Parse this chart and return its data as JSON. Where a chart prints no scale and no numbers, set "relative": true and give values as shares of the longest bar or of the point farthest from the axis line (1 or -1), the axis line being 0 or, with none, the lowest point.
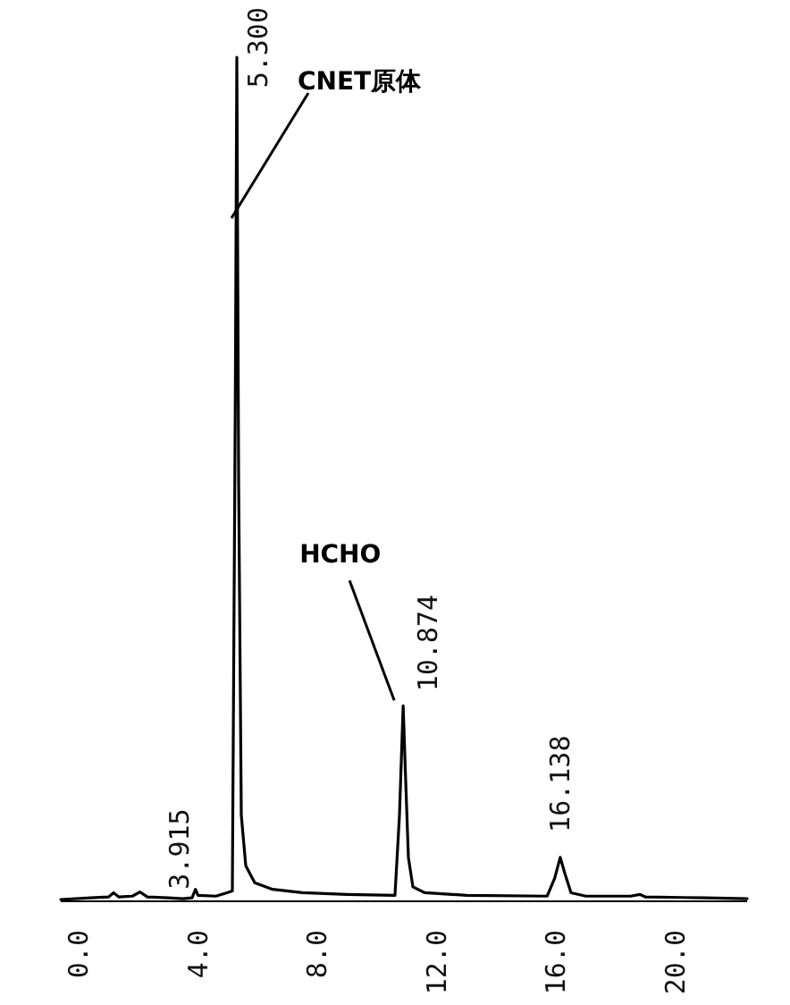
{
  "chart_data": {
    "type": "line",
    "relative": true,
    "tick_labels": "x",
    "xlim": [
      -0.6,
      22.4
    ],
    "xticks": [
      {
        "value": 0,
        "label": "0.0"
      },
      {
        "value": 4,
        "label": "4.0"
      },
      {
        "value": 8,
        "label": "8.0"
      },
      {
        "value": 12,
        "label": "12.0"
      },
      {
        "value": 16,
        "label": "16.0"
      },
      {
        "value": 20,
        "label": "20.0"
      }
    ],
    "series": [
      {
        "color": "#000000",
        "x": [
          -0.6,
          0.4,
          1.0,
          1.17,
          1.35,
          1.8,
          2.05,
          2.3,
          3.0,
          3.5,
          3.8,
          3.915,
          4.0,
          4.6,
          5.15,
          5.25,
          5.3,
          5.36,
          5.45,
          5.6,
          5.9,
          6.5,
          7.5,
          9.0,
          10.6,
          10.75,
          10.874,
          10.95,
          11.05,
          11.2,
          11.6,
          13.0,
          15.7,
          15.95,
          16.138,
          16.3,
          16.5,
          17.0,
          18.5,
          18.8,
          19.0,
          21.0,
          22.4
        ],
        "values": [
          0,
          0.002,
          0.003,
          0.008,
          0.003,
          0.004,
          0.009,
          0.003,
          0.002,
          0.001,
          0.002,
          0.012,
          0.005,
          0.004,
          0.01,
          0.6,
          1.0,
          0.5,
          0.1,
          0.04,
          0.02,
          0.012,
          0.008,
          0.006,
          0.005,
          0.1,
          0.23,
          0.15,
          0.05,
          0.015,
          0.008,
          0.005,
          0.004,
          0.025,
          0.05,
          0.03,
          0.008,
          0.004,
          0.004,
          0.006,
          0.003,
          0.002,
          0.001
        ]
      }
    ],
    "annotations": [
      {
        "text": "3.915",
        "x": 3.915,
        "y": 0.012
      },
      {
        "text": "5.300",
        "x": 5.3,
        "y": 1.0
      },
      {
        "text": "10.874",
        "x": 10.874,
        "y": 0.23
      },
      {
        "text": "16.138",
        "x": 16.138,
        "y": 0.05
      },
      {
        "text": "CNET原体",
        "x": 5.3,
        "y": 1.0
      },
      {
        "text": "HCHO",
        "x": 10.874,
        "y": 0.23
      }
    ]
  }
}
